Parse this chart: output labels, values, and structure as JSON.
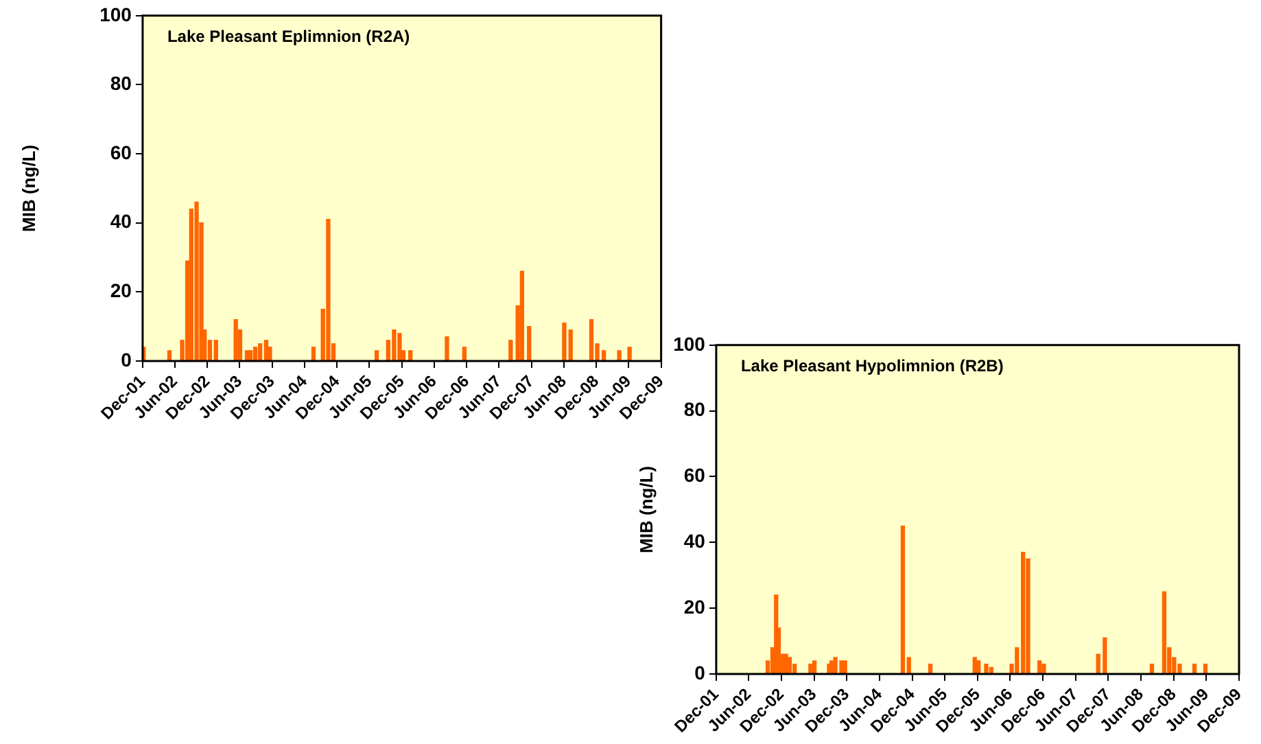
{
  "chart_data": [
    {
      "type": "bar",
      "title": "Lake Pleasant Eplimnion (R2A)",
      "ylabel": "MIB (ng/L)",
      "color": "#ff6600",
      "grid": false,
      "legend": false,
      "x": [
        "2001-12-06",
        "2002-05-01",
        "2002-07-12",
        "2002-08-10",
        "2002-09-01",
        "2002-10-01",
        "2002-10-28",
        "2002-11-15",
        "2002-12-15",
        "2003-01-18",
        "2003-05-10",
        "2003-06-03",
        "2003-07-12",
        "2003-08-01",
        "2003-08-28",
        "2003-09-24",
        "2003-10-28",
        "2003-11-18",
        "2004-07-21",
        "2004-09-12",
        "2004-10-12",
        "2004-11-10",
        "2005-07-12",
        "2005-09-15",
        "2005-10-18",
        "2005-11-18",
        "2005-12-09",
        "2006-01-18",
        "2006-08-12",
        "2006-11-18",
        "2007-08-06",
        "2007-09-15",
        "2007-10-09",
        "2007-11-18",
        "2008-06-03",
        "2008-07-09",
        "2008-11-03",
        "2008-12-06",
        "2009-01-12",
        "2009-04-09",
        "2009-06-06"
      ],
      "values": [
        4,
        3,
        6,
        29,
        44,
        46,
        40,
        9,
        6,
        6,
        12,
        9,
        3,
        3,
        4,
        5,
        6,
        4,
        4,
        15,
        41,
        5,
        3,
        6,
        9,
        8,
        3,
        3,
        7,
        4,
        6,
        16,
        26,
        10,
        11,
        9,
        12,
        5,
        3,
        3,
        4
      ],
      "xlim": [
        "2001-12",
        "2009-12"
      ],
      "xticks": [
        {
          "value": "2001-12",
          "label": "Dec-01"
        },
        {
          "value": "2002-06",
          "label": "Jun-02"
        },
        {
          "value": "2002-12",
          "label": "Dec-02"
        },
        {
          "value": "2003-06",
          "label": "Jun-03"
        },
        {
          "value": "2003-12",
          "label": "Dec-03"
        },
        {
          "value": "2004-06",
          "label": "Jun-04"
        },
        {
          "value": "2004-12",
          "label": "Dec-04"
        },
        {
          "value": "2005-06",
          "label": "Jun-05"
        },
        {
          "value": "2005-12",
          "label": "Dec-05"
        },
        {
          "value": "2006-06",
          "label": "Jun-06"
        },
        {
          "value": "2006-12",
          "label": "Dec-06"
        },
        {
          "value": "2007-06",
          "label": "Jun-07"
        },
        {
          "value": "2007-12",
          "label": "Dec-07"
        },
        {
          "value": "2008-06",
          "label": "Jun-08"
        },
        {
          "value": "2008-12",
          "label": "Dec-08"
        },
        {
          "value": "2009-06",
          "label": "Jun-09"
        },
        {
          "value": "2009-12",
          "label": "Dec-09"
        }
      ],
      "ylim": [
        0,
        100
      ],
      "yticks": [
        0,
        20,
        40,
        60,
        80,
        100
      ]
    },
    {
      "type": "bar",
      "title": "Lake Pleasant Hypolimnion (R2B)",
      "ylabel": "MIB (ng/L)",
      "color": "#ff6600",
      "grid": false,
      "legend": false,
      "x": [
        "2002-09-15",
        "2002-10-12",
        "2002-11-01",
        "2002-11-15",
        "2002-12-04",
        "2002-12-26",
        "2003-01-15",
        "2003-02-12",
        "2003-05-12",
        "2003-06-03",
        "2003-08-24",
        "2003-09-06",
        "2003-09-28",
        "2003-11-01",
        "2003-11-21",
        "2004-10-09",
        "2004-11-12",
        "2005-03-12",
        "2005-11-15",
        "2005-12-06",
        "2006-01-18",
        "2006-02-15",
        "2006-06-09",
        "2006-07-09",
        "2006-08-12",
        "2006-09-09",
        "2006-11-12",
        "2006-12-06",
        "2007-10-06",
        "2007-11-12",
        "2008-08-01",
        "2008-10-09",
        "2008-11-06",
        "2008-12-03",
        "2009-01-03",
        "2009-03-27",
        "2009-05-27"
      ],
      "values": [
        4,
        8,
        24,
        14,
        6,
        6,
        5,
        3,
        3,
        4,
        3,
        4,
        5,
        4,
        4,
        45,
        5,
        3,
        5,
        4,
        3,
        2,
        3,
        8,
        37,
        35,
        4,
        3,
        6,
        11,
        3,
        25,
        8,
        5,
        3,
        3,
        3
      ],
      "xlim": [
        "2001-12",
        "2009-12"
      ],
      "xticks": [
        {
          "value": "2001-12",
          "label": "Dec-01"
        },
        {
          "value": "2002-06",
          "label": "Jun-02"
        },
        {
          "value": "2002-12",
          "label": "Dec-02"
        },
        {
          "value": "2003-06",
          "label": "Jun-03"
        },
        {
          "value": "2003-12",
          "label": "Dec-03"
        },
        {
          "value": "2004-06",
          "label": "Jun-04"
        },
        {
          "value": "2004-12",
          "label": "Dec-04"
        },
        {
          "value": "2005-06",
          "label": "Jun-05"
        },
        {
          "value": "2005-12",
          "label": "Dec-05"
        },
        {
          "value": "2006-06",
          "label": "Jun-06"
        },
        {
          "value": "2006-12",
          "label": "Dec-06"
        },
        {
          "value": "2007-06",
          "label": "Jun-07"
        },
        {
          "value": "2007-12",
          "label": "Dec-07"
        },
        {
          "value": "2008-06",
          "label": "Jun-08"
        },
        {
          "value": "2008-12",
          "label": "Dec-08"
        },
        {
          "value": "2009-06",
          "label": "Jun-09"
        },
        {
          "value": "2009-12",
          "label": "Dec-09"
        }
      ],
      "ylim": [
        0,
        100
      ],
      "yticks": [
        0,
        20,
        40,
        60,
        80,
        100
      ]
    }
  ]
}
